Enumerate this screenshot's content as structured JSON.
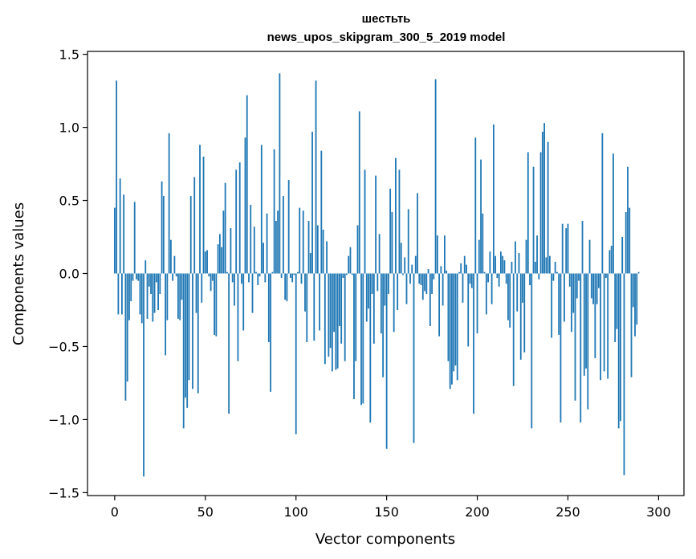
{
  "chart_data": {
    "type": "bar",
    "title": "шестьть",
    "subtitle": "news_upos_skipgram_300_5_2019 model",
    "xlabel": "Vector components",
    "ylabel": "Components values",
    "xlim": [
      -15,
      314
    ],
    "ylim": [
      -1.52,
      1.52
    ],
    "xticks": [
      0,
      50,
      100,
      150,
      200,
      250,
      300
    ],
    "yticks": [
      -1.5,
      -1.0,
      -0.5,
      0.0,
      0.5,
      1.0,
      1.5
    ],
    "xtick_labels": [
      "0",
      "50",
      "100",
      "150",
      "200",
      "250",
      "300"
    ],
    "ytick_labels": [
      "−1.5",
      "−1.0",
      "−0.5",
      "0.0",
      "0.5",
      "1.0",
      "1.5"
    ],
    "bar_color": "#1f77b4",
    "grid": false,
    "values": [
      0.45,
      1.32,
      -0.28,
      0.65,
      -0.28,
      0.54,
      -0.87,
      -0.74,
      -0.32,
      -0.19,
      -0.05,
      0.49,
      -0.04,
      -0.05,
      -0.28,
      -0.34,
      -1.39,
      0.09,
      -0.31,
      -0.09,
      -0.14,
      -0.33,
      -0.27,
      -0.06,
      -0.25,
      -0.14,
      0.63,
      0.53,
      -0.56,
      -0.32,
      0.96,
      0.23,
      -0.05,
      0.12,
      -0.02,
      -0.31,
      -0.32,
      -0.18,
      -1.06,
      -0.85,
      -0.92,
      -0.73,
      0.53,
      -0.79,
      0.66,
      -0.27,
      -0.82,
      0.88,
      -0.2,
      0.8,
      0.15,
      0.16,
      -0.02,
      -0.12,
      -0.05,
      -0.42,
      -0.43,
      0.2,
      0.27,
      0.18,
      0.43,
      0.62,
      0.01,
      -0.96,
      0.31,
      -0.06,
      -0.22,
      0.71,
      -0.6,
      0.76,
      -0.07,
      -0.39,
      0.93,
      1.22,
      -0.06,
      0.47,
      -0.27,
      0.32,
      0.01,
      -0.08,
      -0.02,
      0.88,
      0.21,
      -0.06,
      0.41,
      -0.47,
      -0.81,
      0.01,
      0.85,
      0.36,
      0.43,
      1.37,
      -0.03,
      0.53,
      -0.18,
      -0.19,
      0.64,
      -0.03,
      -0.06,
      -0.01,
      -1.1,
      0.01,
      0.45,
      -0.07,
      0.43,
      -0.26,
      -0.47,
      0.36,
      0.14,
      0.97,
      -0.46,
      1.32,
      0.33,
      -0.39,
      0.84,
      0.3,
      -0.62,
      0.22,
      -0.57,
      -0.51,
      -0.67,
      -0.4,
      -0.66,
      -0.65,
      -0.36,
      -0.48,
      -0.03,
      -0.6,
      -0.01,
      0.12,
      0.18,
      -0.01,
      -0.86,
      -0.6,
      0.33,
      1.11,
      -0.9,
      -0.89,
      0.71,
      -0.33,
      -0.24,
      -1.02,
      -0.14,
      -0.48,
      0.67,
      -0.12,
      0.27,
      -0.41,
      -0.71,
      -0.22,
      -1.2,
      -0.14,
      0.58,
      0.42,
      -0.4,
      0.79,
      -0.25,
      0.71,
      0.21,
      -0.01,
      0.11,
      -0.21,
      0.44,
      -0.07,
      0.06,
      -1.16,
      0.12,
      0.55,
      -0.07,
      -0.08,
      -0.18,
      -0.12,
      -0.14,
      0.03,
      -0.36,
      -0.14,
      -0.04,
      1.33,
      0.26,
      -0.43,
      0.05,
      -0.22,
      0.26,
      0.02,
      -0.6,
      -0.79,
      -0.76,
      -0.67,
      -0.63,
      -0.73,
      0.01,
      0.07,
      -0.2,
      0.12,
      0.06,
      -0.5,
      -0.07,
      -0.1,
      -0.96,
      0.93,
      -0.41,
      0.23,
      0.78,
      0.41,
      0.01,
      -0.28,
      -0.06,
      0.15,
      -0.21,
      1.02,
      0.12,
      -0.03,
      -0.09,
      0.15,
      0.12,
      0.09,
      -0.07,
      -0.32,
      -0.37,
      0.08,
      -0.77,
      0.22,
      -0.26,
      0.14,
      -0.59,
      -0.2,
      -0.54,
      0.23,
      0.83,
      -0.08,
      -1.06,
      0.73,
      0.08,
      0.26,
      -0.04,
      0.83,
      0.97,
      1.03,
      0.11,
      0.9,
      0.12,
      -0.44,
      -0.05,
      0.08,
      0.01,
      -0.42,
      -1.02,
      0.34,
      -0.33,
      0.31,
      0.34,
      -0.09,
      -0.4,
      -0.27,
      -0.87,
      -0.17,
      -0.05,
      -1.02,
      0.36,
      -0.7,
      -0.65,
      -0.93,
      0.23,
      -0.17,
      -0.21,
      -0.58,
      -0.21,
      -0.1,
      -0.73,
      0.96,
      -0.67,
      -0.03,
      -0.72,
      0.16,
      0.19,
      0.82,
      -0.47,
      -0.38,
      -1.06,
      -1.01,
      0.25,
      -1.38,
      0.42,
      0.73,
      0.45,
      -0.71,
      -0.23,
      -0.43,
      -0.35,
      0.01
    ]
  }
}
